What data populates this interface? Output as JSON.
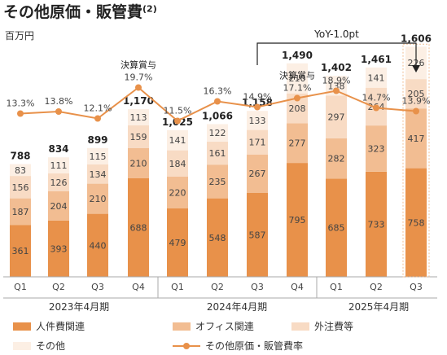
{
  "title": "その他原価・販管費",
  "title_note": "(2)",
  "unit_label": "百万円",
  "colors": {
    "personnel": "#e8914a",
    "office": "#f2bd92",
    "outsourcing": "#f8dbc4",
    "other": "#fcefe4",
    "ratio_line": "#e8914a",
    "axis": "#aaaaaa"
  },
  "chart_data": {
    "type": "bar",
    "subtype": "stacked bar with line overlay",
    "categories": [
      "Q1",
      "Q2",
      "Q3",
      "Q4",
      "Q1",
      "Q2",
      "Q3",
      "Q4",
      "Q1",
      "Q2",
      "Q3"
    ],
    "fiscal_years": [
      {
        "label": "2023年4月期",
        "quarters": 4
      },
      {
        "label": "2024年4月期",
        "quarters": 4
      },
      {
        "label": "2025年4月期",
        "quarters": 3
      }
    ],
    "series": [
      {
        "name": "人件費関連",
        "values": [
          361,
          393,
          440,
          688,
          479,
          548,
          587,
          795,
          685,
          733,
          758
        ]
      },
      {
        "name": "オフィス関連",
        "values": [
          187,
          204,
          210,
          210,
          220,
          235,
          267,
          277,
          282,
          323,
          417
        ]
      },
      {
        "name": "外注費等",
        "values": [
          156,
          126,
          134,
          159,
          184,
          161,
          171,
          208,
          297,
          264,
          205
        ]
      },
      {
        "name": "その他",
        "values": [
          83,
          111,
          115,
          113,
          141,
          122,
          133,
          210,
          138,
          141,
          226
        ]
      }
    ],
    "totals": [
      788,
      834,
      899,
      1170,
      1025,
      1066,
      1158,
      1490,
      1402,
      1461,
      1606
    ],
    "totals_labels": [
      "788",
      "834",
      "899",
      "1,170",
      "1,025",
      "1,066",
      "1,158",
      "1,490",
      "1,402",
      "1,461",
      "1,606"
    ],
    "ratio_series": {
      "name": "その他原価・販管費率",
      "values": [
        13.3,
        13.8,
        12.1,
        19.7,
        11.5,
        16.3,
        14.9,
        17.1,
        18.9,
        14.7,
        13.9
      ],
      "labels": [
        "13.3%",
        "13.8%",
        "12.1%",
        "19.7%",
        "11.5%",
        "16.3%",
        "14.9%",
        "17.1%",
        "18.9%",
        "14.7%",
        "13.9%"
      ]
    },
    "annotations": [
      {
        "text": "決算賞与",
        "index": 3
      },
      {
        "text": "決算賞与",
        "index": 7
      }
    ],
    "yoy_bracket": {
      "text": "YoY-1.0pt",
      "from_index": 6,
      "to_index": 10
    },
    "highlighted_index": 10
  }
}
